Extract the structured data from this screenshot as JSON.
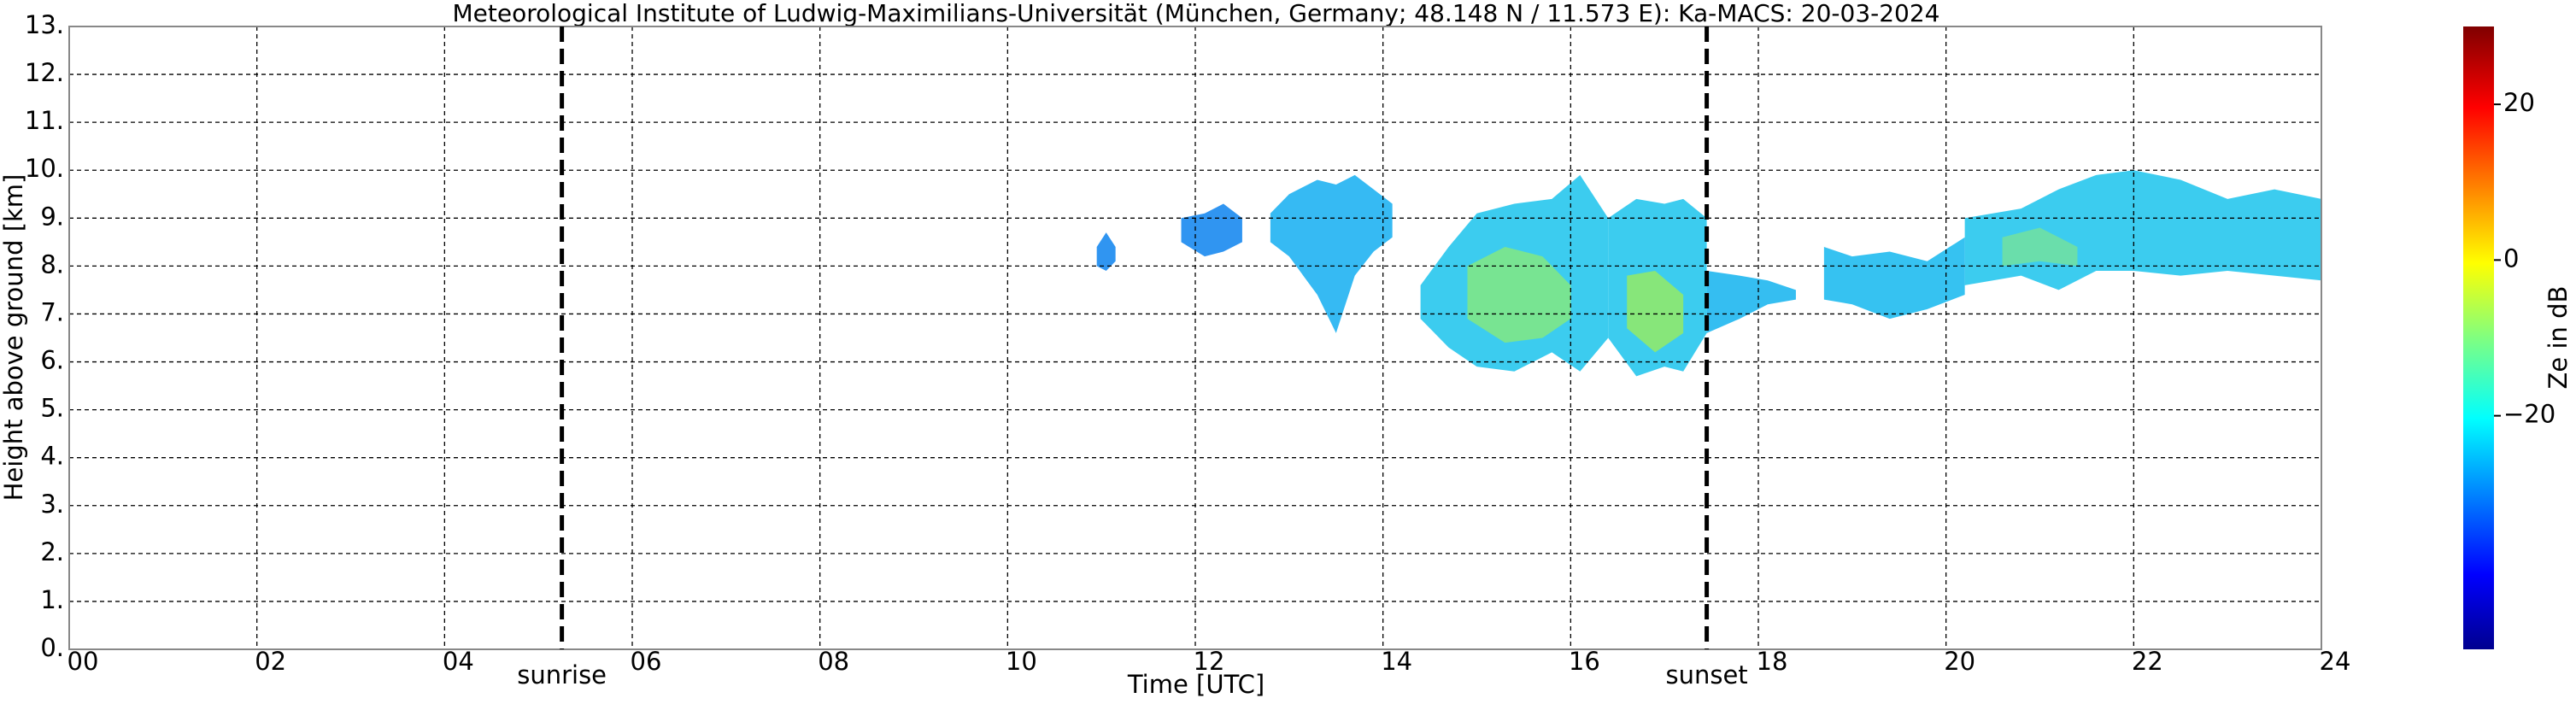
{
  "chart_data": {
    "type": "time-height",
    "title": "Meteorological Institute of Ludwig-Maximilians-Universität (München, Germany; 48.148 N / 11.573 E):    Ka-MACS: 20-03-2024",
    "x_label": "Time [UTC]",
    "y_label": "Height above ground [km]",
    "xlim": [
      0,
      24
    ],
    "xticks": [
      {
        "value": 0,
        "label": "00"
      },
      {
        "value": 2,
        "label": "02"
      },
      {
        "value": 4,
        "label": "04"
      },
      {
        "value": 6,
        "label": "06"
      },
      {
        "value": 8,
        "label": "08"
      },
      {
        "value": 10,
        "label": "10"
      },
      {
        "value": 12,
        "label": "12"
      },
      {
        "value": 14,
        "label": "14"
      },
      {
        "value": 16,
        "label": "16"
      },
      {
        "value": 18,
        "label": "18"
      },
      {
        "value": 20,
        "label": "20"
      },
      {
        "value": 22,
        "label": "22"
      },
      {
        "value": 24,
        "label": "24"
      }
    ],
    "ylim": [
      0,
      13
    ],
    "yticks": [
      {
        "value": 0,
        "label": "0."
      },
      {
        "value": 1,
        "label": "1."
      },
      {
        "value": 2,
        "label": "2."
      },
      {
        "value": 3,
        "label": "3."
      },
      {
        "value": 4,
        "label": "4."
      },
      {
        "value": 5,
        "label": "5."
      },
      {
        "value": 6,
        "label": "6."
      },
      {
        "value": 7,
        "label": "7."
      },
      {
        "value": 8,
        "label": "8."
      },
      {
        "value": 9,
        "label": "9."
      },
      {
        "value": 10,
        "label": "10."
      },
      {
        "value": 11,
        "label": "11."
      },
      {
        "value": 12,
        "label": "12."
      },
      {
        "value": 13,
        "label": "13."
      }
    ],
    "grid": true,
    "events": [
      {
        "label": "sunrise",
        "x": 5.25
      },
      {
        "label": "sunset",
        "x": 17.45
      }
    ],
    "colorbar": {
      "label": "Ze in dB",
      "clim": [
        -50,
        30
      ],
      "ticks": [
        {
          "value": -20,
          "label": "−20"
        },
        0,
        20
      ]
    },
    "echoes": [
      {
        "color": "#1e8cf0",
        "x": [
          10.95,
          11.05,
          11.15
        ],
        "top": [
          8.4,
          8.7,
          8.4
        ],
        "base": [
          8.0,
          7.9,
          8.1
        ]
      },
      {
        "color": "#1e8cf0",
        "x": [
          11.85,
          12.1,
          12.3,
          12.5
        ],
        "top": [
          9.0,
          9.1,
          9.3,
          9.0
        ],
        "base": [
          8.5,
          8.2,
          8.3,
          8.5
        ]
      },
      {
        "color": "#25b4f2",
        "x": [
          12.8,
          13.0,
          13.3,
          13.5,
          13.7,
          13.9,
          14.1
        ],
        "top": [
          9.1,
          9.5,
          9.8,
          9.7,
          9.9,
          9.6,
          9.3
        ],
        "base": [
          8.5,
          8.2,
          7.4,
          6.6,
          7.8,
          8.3,
          8.6
        ]
      },
      {
        "color": "#2bc8ee",
        "x": [
          14.4,
          14.7,
          15.0,
          15.4,
          15.8,
          16.1,
          16.4
        ],
        "top": [
          7.6,
          8.4,
          9.1,
          9.3,
          9.4,
          9.9,
          9.0
        ],
        "base": [
          6.9,
          6.3,
          5.9,
          5.8,
          6.2,
          5.8,
          6.5
        ]
      },
      {
        "color": "#2bc8ee",
        "x": [
          16.4,
          16.7,
          17.0,
          17.2,
          17.45
        ],
        "top": [
          9.0,
          9.4,
          9.3,
          9.4,
          9.0
        ],
        "base": [
          6.5,
          5.7,
          5.9,
          5.8,
          6.6
        ]
      },
      {
        "color": "#24b8f0",
        "x": [
          17.45,
          17.8,
          18.1,
          18.4
        ],
        "top": [
          7.9,
          7.8,
          7.7,
          7.5
        ],
        "base": [
          6.6,
          6.9,
          7.2,
          7.3
        ]
      },
      {
        "color": "#25bdf0",
        "x": [
          18.7,
          19.0,
          19.4,
          19.8,
          20.2
        ],
        "top": [
          8.4,
          8.2,
          8.3,
          8.1,
          8.6
        ],
        "base": [
          7.3,
          7.2,
          6.9,
          7.1,
          7.4
        ]
      },
      {
        "color": "#2bc8ee",
        "x": [
          20.2,
          20.8,
          21.2,
          21.6,
          22.0,
          22.5,
          23.0,
          23.5,
          24.0
        ],
        "top": [
          9.0,
          9.2,
          9.6,
          9.9,
          10.0,
          9.8,
          9.4,
          9.6,
          9.4
        ],
        "base": [
          7.6,
          7.8,
          7.5,
          7.9,
          7.9,
          7.8,
          7.9,
          7.8,
          7.7
        ]
      },
      {
        "color": "#7ee68a",
        "x": [
          14.9,
          15.3,
          15.7,
          16.0
        ],
        "top": [
          8.0,
          8.4,
          8.2,
          7.6
        ],
        "base": [
          6.9,
          6.4,
          6.5,
          6.9
        ]
      },
      {
        "color": "#8ee870",
        "x": [
          16.6,
          16.9,
          17.2
        ],
        "top": [
          7.8,
          7.9,
          7.4
        ],
        "base": [
          6.7,
          6.2,
          6.6
        ]
      },
      {
        "color": "#6fe0a5",
        "x": [
          20.6,
          21.0,
          21.4
        ],
        "top": [
          8.6,
          8.8,
          8.4
        ],
        "base": [
          8.0,
          8.1,
          8.0
        ]
      }
    ]
  }
}
